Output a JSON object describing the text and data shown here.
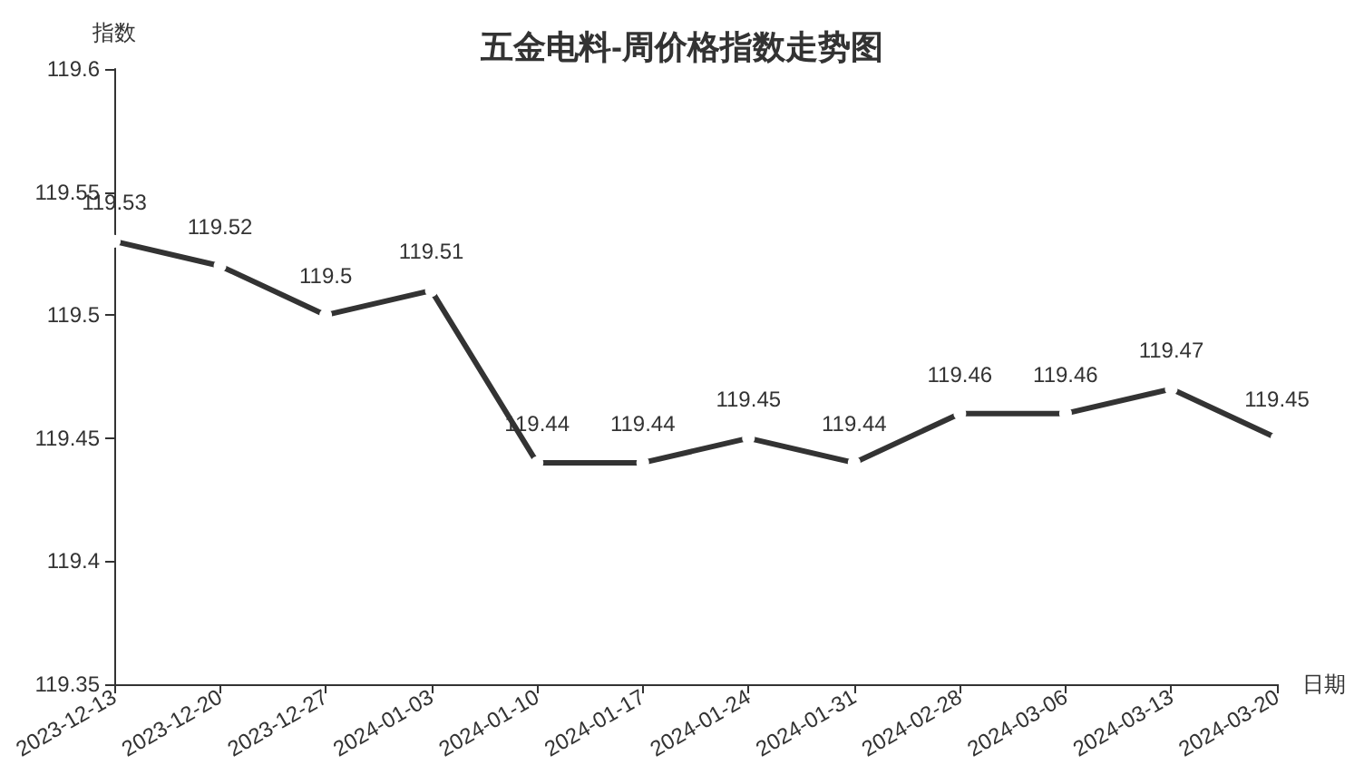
{
  "chart_data": {
    "type": "line",
    "title": "五金电料-周价格指数走势图",
    "xlabel": "日期",
    "ylabel": "指数",
    "categories": [
      "2023-12-13",
      "2023-12-20",
      "2023-12-27",
      "2024-01-03",
      "2024-01-10",
      "2024-01-17",
      "2024-01-24",
      "2024-01-31",
      "2024-02-28",
      "2024-03-06",
      "2024-03-13",
      "2024-03-20"
    ],
    "series": [
      {
        "color": "#333333",
        "values": [
          119.53,
          119.52,
          119.5,
          119.51,
          119.44,
          119.44,
          119.45,
          119.44,
          119.46,
          119.46,
          119.47,
          119.45
        ]
      }
    ],
    "ylim": [
      119.35,
      119.6
    ],
    "yticks": [
      119.35,
      119.4,
      119.45,
      119.5,
      119.55,
      119.6
    ],
    "data_labels": true,
    "marker": "circle",
    "line_style": "solid",
    "grid": false
  }
}
